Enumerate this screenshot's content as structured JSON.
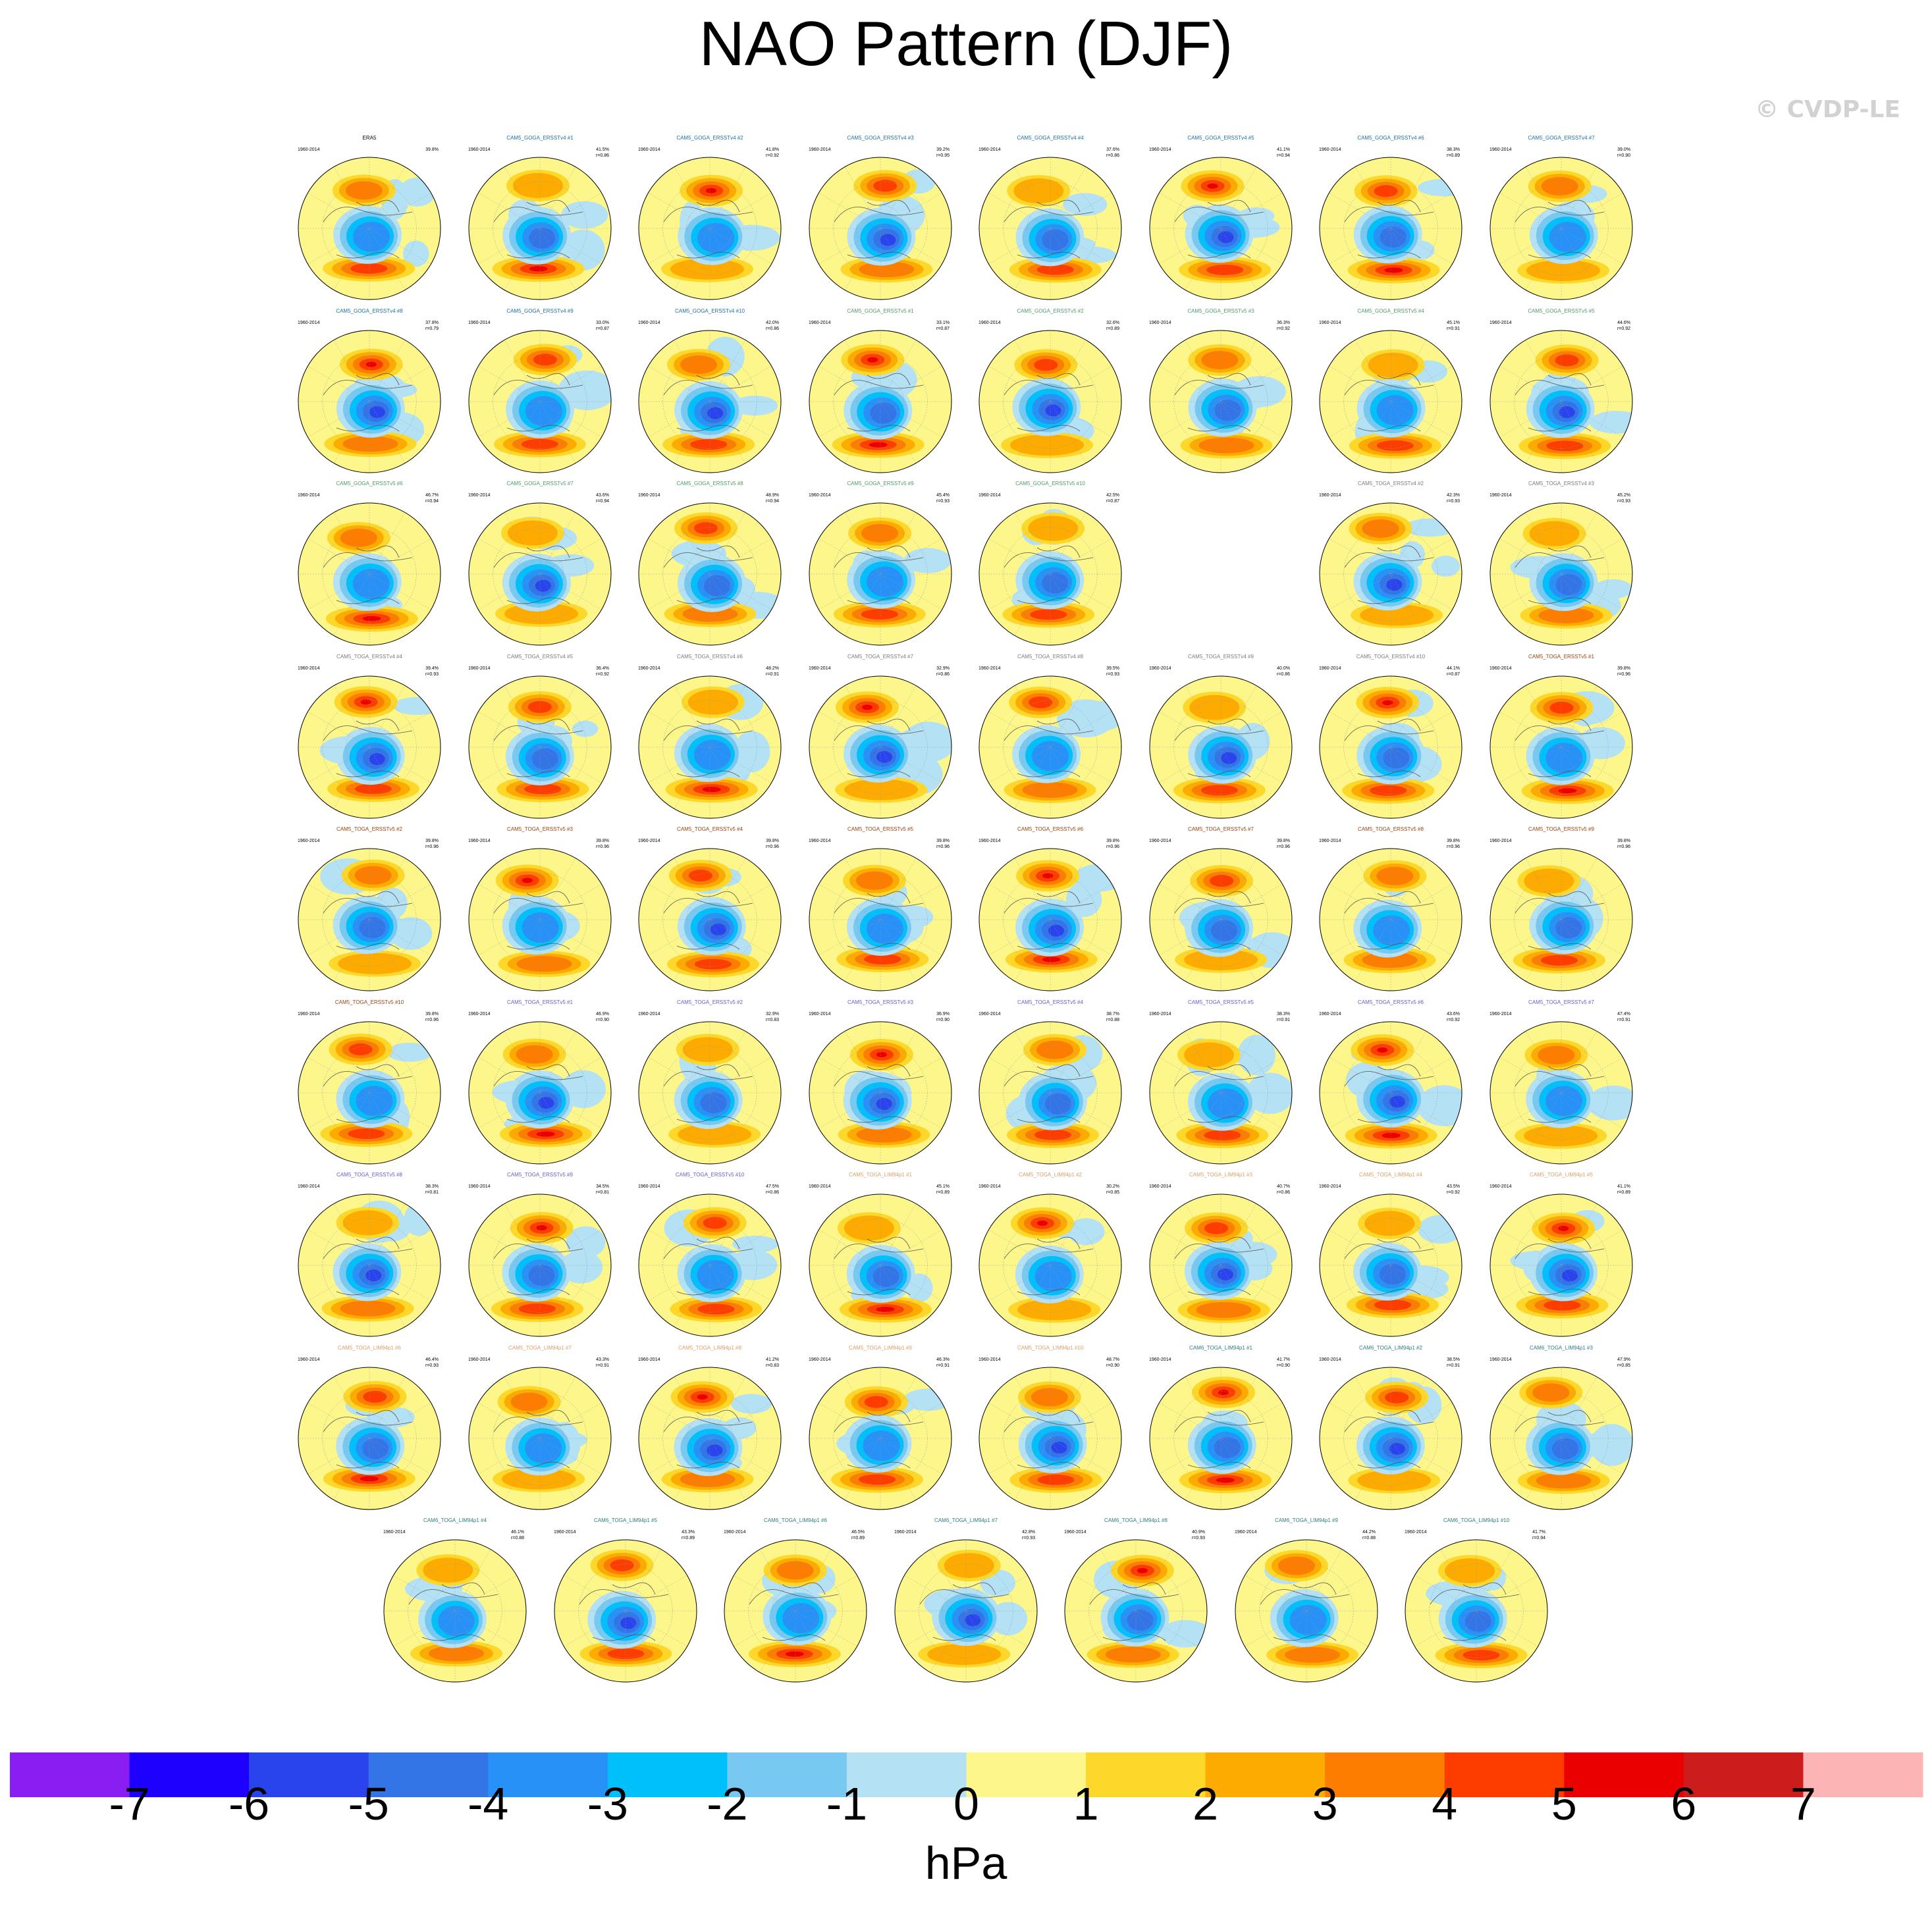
{
  "title": "NAO Pattern (DJF)",
  "watermark": "© CVDP-LE",
  "colorbar": {
    "unit": "hPa",
    "ticks": [
      "-7",
      "-6",
      "-5",
      "-4",
      "-3",
      "-2",
      "-1",
      "0",
      "1",
      "2",
      "3",
      "4",
      "5",
      "6",
      "7"
    ],
    "colors": [
      "#8a1ef2",
      "#1d00fe",
      "#2a44ed",
      "#3374e6",
      "#2891f8",
      "#00c0fc",
      "#78c9f1",
      "#b4e1f4",
      "#fdf68a",
      "#fdd82a",
      "#fdab01",
      "#fd7d01",
      "#fd3c00",
      "#eb0000",
      "#cc1c1c",
      "#fdb4b4"
    ]
  },
  "chart_data": {
    "type": "map-panel-grid",
    "period": "1960-2014",
    "value_unit": "hPa",
    "rows": [
      [
        {
          "title": "ERA5",
          "pct": "39.8%",
          "r": "",
          "title_color": "#000000"
        },
        {
          "title": "CAM5_GOGA_ERSSTv4 #1",
          "pct": "41.5%",
          "r": "r=0.86",
          "title_color": "#1f6f9e"
        },
        {
          "title": "CAM5_GOGA_ERSSTv4 #2",
          "pct": "41.8%",
          "r": "r=0.92",
          "title_color": "#1f6f9e"
        },
        {
          "title": "CAM5_GOGA_ERSSTv4 #3",
          "pct": "39.2%",
          "r": "r=0.95",
          "title_color": "#1f6f9e"
        },
        {
          "title": "CAM5_GOGA_ERSSTv4 #4",
          "pct": "37.6%",
          "r": "r=0.86",
          "title_color": "#1f6f9e"
        },
        {
          "title": "CAM5_GOGA_ERSSTv4 #5",
          "pct": "41.1%",
          "r": "r=0.94",
          "title_color": "#1f6f9e"
        },
        {
          "title": "CAM5_GOGA_ERSSTv4 #6",
          "pct": "38.3%",
          "r": "r=0.89",
          "title_color": "#1f6f9e"
        },
        {
          "title": "CAM5_GOGA_ERSSTv4 #7",
          "pct": "39.0%",
          "r": "r=0.90",
          "title_color": "#1f6f9e"
        }
      ],
      [
        {
          "title": "CAM5_GOGA_ERSSTv4 #8",
          "pct": "37.8%",
          "r": "r=0.79",
          "title_color": "#1f6f9e"
        },
        {
          "title": "CAM5_GOGA_ERSSTv4 #9",
          "pct": "33.0%",
          "r": "r=0.87",
          "title_color": "#1f6f9e"
        },
        {
          "title": "CAM5_GOGA_ERSSTv4 #10",
          "pct": "42.0%",
          "r": "r=0.86",
          "title_color": "#1f6f9e"
        },
        {
          "title": "CAM5_GOGA_ERSSTv5 #1",
          "pct": "33.1%",
          "r": "r=0.87",
          "title_color": "#4f9a6a"
        },
        {
          "title": "CAM5_GOGA_ERSSTv5 #2",
          "pct": "32.6%",
          "r": "r=0.89",
          "title_color": "#4f9a6a"
        },
        {
          "title": "CAM5_GOGA_ERSSTv5 #3",
          "pct": "36.3%",
          "r": "r=0.92",
          "title_color": "#4f9a6a"
        },
        {
          "title": "CAM5_GOGA_ERSSTv5 #4",
          "pct": "45.1%",
          "r": "r=0.91",
          "title_color": "#4f9a6a"
        },
        {
          "title": "CAM5_GOGA_ERSSTv5 #5",
          "pct": "44.6%",
          "r": "r=0.92",
          "title_color": "#4f9a6a"
        }
      ],
      [
        {
          "title": "CAM5_GOGA_ERSSTv5 #6",
          "pct": "46.7%",
          "r": "r=0.94",
          "title_color": "#4f9a6a"
        },
        {
          "title": "CAM5_GOGA_ERSSTv5 #7",
          "pct": "43.6%",
          "r": "r=0.94",
          "title_color": "#4f9a6a"
        },
        {
          "title": "CAM5_GOGA_ERSSTv5 #8",
          "pct": "48.9%",
          "r": "r=0.94",
          "title_color": "#4f9a6a"
        },
        {
          "title": "CAM5_GOGA_ERSSTv5 #9",
          "pct": "45.4%",
          "r": "r=0.93",
          "title_color": "#4f9a6a"
        },
        {
          "title": "CAM5_GOGA_ERSSTv5 #10",
          "pct": "42.5%",
          "r": "r=0.87",
          "title_color": "#4f9a6a"
        },
        null,
        {
          "title": "CAM5_TOGA_ERSSTv4 #2",
          "pct": "42.3%",
          "r": "r=0.93",
          "title_color": "#7b7b7b"
        },
        {
          "title": "CAM5_TOGA_ERSSTv4 #3",
          "pct": "45.2%",
          "r": "r=0.93",
          "title_color": "#7b7b7b"
        }
      ],
      [
        {
          "title": "CAM5_TOGA_ERSSTv4 #4",
          "pct": "39.4%",
          "r": "r=0.93",
          "title_color": "#7b7b7b"
        },
        {
          "title": "CAM5_TOGA_ERSSTv4 #5",
          "pct": "36.4%",
          "r": "r=0.92",
          "title_color": "#7b7b7b"
        },
        {
          "title": "CAM5_TOGA_ERSSTv4 #6",
          "pct": "48.2%",
          "r": "r=0.91",
          "title_color": "#7b7b7b"
        },
        {
          "title": "CAM5_TOGA_ERSSTv4 #7",
          "pct": "32.9%",
          "r": "r=0.86",
          "title_color": "#7b7b7b"
        },
        {
          "title": "CAM5_TOGA_ERSSTv4 #8",
          "pct": "39.5%",
          "r": "r=0.93",
          "title_color": "#7b7b7b"
        },
        {
          "title": "CAM5_TOGA_ERSSTv4 #9",
          "pct": "40.0%",
          "r": "r=0.86",
          "title_color": "#7b7b7b"
        },
        {
          "title": "CAM5_TOGA_ERSSTv4 #10",
          "pct": "44.1%",
          "r": "r=0.87",
          "title_color": "#7b7b7b"
        },
        {
          "title": "CAM5_TOGA_ERSSTv5 #1",
          "pct": "39.8%",
          "r": "r=0.96",
          "title_color": "#a0400c"
        }
      ],
      [
        {
          "title": "CAM5_TOGA_ERSSTv5 #2",
          "pct": "39.8%",
          "r": "r=0.96",
          "title_color": "#a0400c"
        },
        {
          "title": "CAM5_TOGA_ERSSTv5 #3",
          "pct": "39.8%",
          "r": "r=0.96",
          "title_color": "#a0400c"
        },
        {
          "title": "CAM5_TOGA_ERSSTv5 #4",
          "pct": "39.8%",
          "r": "r=0.96",
          "title_color": "#a0400c"
        },
        {
          "title": "CAM5_TOGA_ERSSTv5 #5",
          "pct": "39.8%",
          "r": "r=0.96",
          "title_color": "#a0400c"
        },
        {
          "title": "CAM5_TOGA_ERSSTv5 #6",
          "pct": "39.8%",
          "r": "r=0.96",
          "title_color": "#a0400c"
        },
        {
          "title": "CAM5_TOGA_ERSSTv5 #7",
          "pct": "39.8%",
          "r": "r=0.96",
          "title_color": "#a0400c"
        },
        {
          "title": "CAM5_TOGA_ERSSTv5 #8",
          "pct": "39.8%",
          "r": "r=0.96",
          "title_color": "#a0400c"
        },
        {
          "title": "CAM5_TOGA_ERSSTv5 #9",
          "pct": "39.8%",
          "r": "r=0.96",
          "title_color": "#a0400c"
        }
      ],
      [
        {
          "title": "CAM5_TOGA_ERSSTv5 #10",
          "pct": "39.8%",
          "r": "r=0.96",
          "title_color": "#a0400c"
        },
        {
          "title": "CAM5_TOGA_ERSSTv5 #1",
          "pct": "46.9%",
          "r": "r=0.90",
          "title_color": "#6a5acd"
        },
        {
          "title": "CAM5_TOGA_ERSSTv5 #2",
          "pct": "32.9%",
          "r": "r=0.83",
          "title_color": "#6a5acd"
        },
        {
          "title": "CAM5_TOGA_ERSSTv5 #3",
          "pct": "36.9%",
          "r": "r=0.90",
          "title_color": "#6a5acd"
        },
        {
          "title": "CAM5_TOGA_ERSSTv5 #4",
          "pct": "38.7%",
          "r": "r=0.88",
          "title_color": "#6a5acd"
        },
        {
          "title": "CAM5_TOGA_ERSSTv5 #5",
          "pct": "38.3%",
          "r": "r=0.91",
          "title_color": "#6a5acd"
        },
        {
          "title": "CAM5_TOGA_ERSSTv5 #6",
          "pct": "43.6%",
          "r": "r=0.92",
          "title_color": "#6a5acd"
        },
        {
          "title": "CAM5_TOGA_ERSSTv5 #7",
          "pct": "47.4%",
          "r": "r=0.91",
          "title_color": "#6a5acd"
        }
      ],
      [
        {
          "title": "CAM5_TOGA_ERSSTv5 #8",
          "pct": "38.3%",
          "r": "r=0.81",
          "title_color": "#6a5acd"
        },
        {
          "title": "CAM5_TOGA_ERSSTv5 #9",
          "pct": "34.5%",
          "r": "r=0.81",
          "title_color": "#6a5acd"
        },
        {
          "title": "CAM5_TOGA_ERSSTv5 #10",
          "pct": "47.5%",
          "r": "r=0.86",
          "title_color": "#6a5acd"
        },
        {
          "title": "CAM5_TOGA_LIM94p1 #1",
          "pct": "45.1%",
          "r": "r=0.89",
          "title_color": "#d9a066"
        },
        {
          "title": "CAM5_TOGA_LIM94p1 #2",
          "pct": "30.2%",
          "r": "r=0.85",
          "title_color": "#d9a066"
        },
        {
          "title": "CAM5_TOGA_LIM94p1 #3",
          "pct": "40.7%",
          "r": "r=0.86",
          "title_color": "#d9a066"
        },
        {
          "title": "CAM5_TOGA_LIM94p1 #4",
          "pct": "43.5%",
          "r": "r=0.92",
          "title_color": "#d9a066"
        },
        {
          "title": "CAM5_TOGA_LIM94p1 #5",
          "pct": "41.1%",
          "r": "r=0.89",
          "title_color": "#d9a066"
        }
      ],
      [
        {
          "title": "CAM5_TOGA_LIM94p1 #6",
          "pct": "46.4%",
          "r": "r=0.93",
          "title_color": "#d9a066"
        },
        {
          "title": "CAM5_TOGA_LIM94p1 #7",
          "pct": "43.3%",
          "r": "r=0.91",
          "title_color": "#d9a066"
        },
        {
          "title": "CAM5_TOGA_LIM94p1 #8",
          "pct": "41.2%",
          "r": "r=0.83",
          "title_color": "#d9a066"
        },
        {
          "title": "CAM5_TOGA_LIM94p1 #9",
          "pct": "46.3%",
          "r": "r=0.91",
          "title_color": "#d9a066"
        },
        {
          "title": "CAM5_TOGA_LIM94p1 #10",
          "pct": "48.7%",
          "r": "r=0.90",
          "title_color": "#d9a066"
        },
        {
          "title": "CAM6_TOGA_LIM94p1 #1",
          "pct": "41.7%",
          "r": "r=0.90",
          "title_color": "#2e7d80"
        },
        {
          "title": "CAM6_TOGA_LIM94p1 #2",
          "pct": "38.5%",
          "r": "r=0.91",
          "title_color": "#2e7d80"
        },
        {
          "title": "CAM6_TOGA_LIM94p1 #3",
          "pct": "47.9%",
          "r": "r=0.85",
          "title_color": "#2e7d80"
        }
      ],
      [
        {
          "title": "CAM6_TOGA_LIM94p1 #4",
          "pct": "46.1%",
          "r": "r=0.88",
          "title_color": "#2e7d80"
        },
        {
          "title": "CAM6_TOGA_LIM94p1 #5",
          "pct": "43.3%",
          "r": "r=0.89",
          "title_color": "#2e7d80"
        },
        {
          "title": "CAM6_TOGA_LIM94p1 #6",
          "pct": "46.5%",
          "r": "r=0.89",
          "title_color": "#2e7d80"
        },
        {
          "title": "CAM6_TOGA_LIM94p1 #7",
          "pct": "42.8%",
          "r": "r=0.93",
          "title_color": "#2e7d80"
        },
        {
          "title": "CAM6_TOGA_LIM94p1 #8",
          "pct": "40.9%",
          "r": "r=0.93",
          "title_color": "#2e7d80"
        },
        {
          "title": "CAM6_TOGA_LIM94p1 #9",
          "pct": "44.2%",
          "r": "r=0.88",
          "title_color": "#2e7d80"
        },
        {
          "title": "CAM6_TOGA_LIM94p1 #10",
          "pct": "41.7%",
          "r": "r=0.94",
          "title_color": "#2e7d80"
        }
      ]
    ]
  }
}
